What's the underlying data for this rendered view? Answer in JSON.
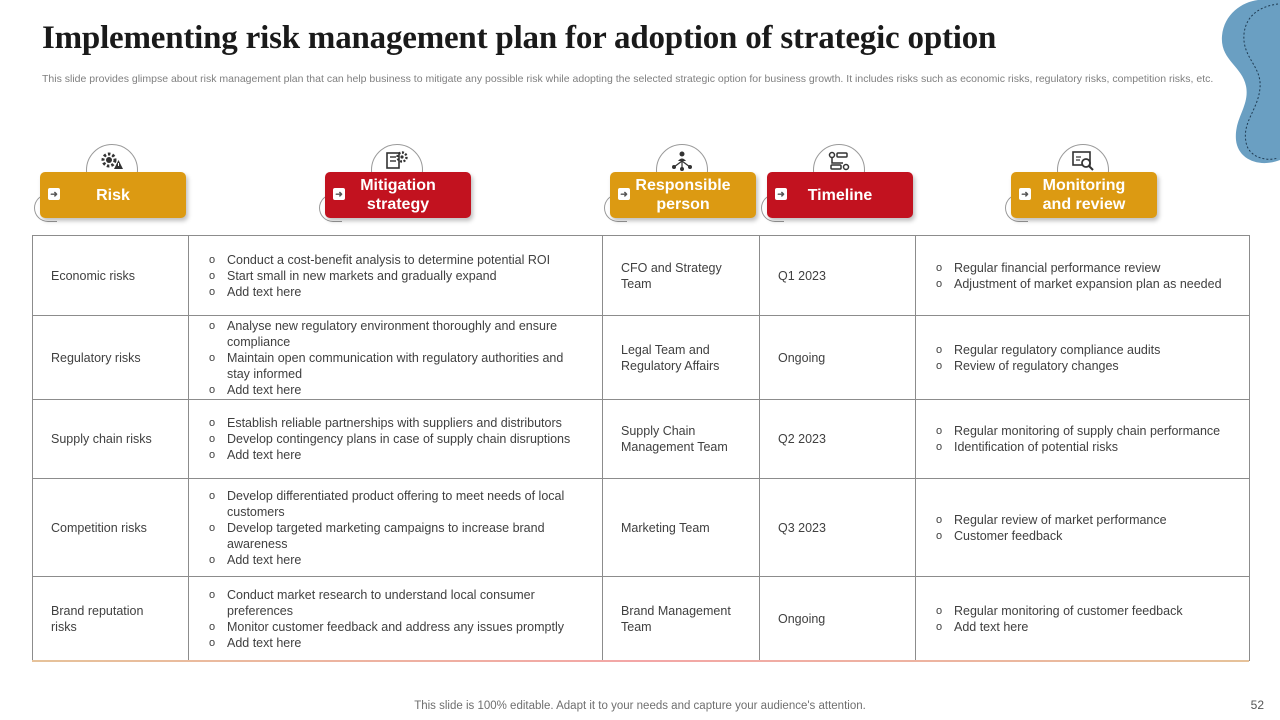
{
  "title": "Implementing risk management plan for adoption of strategic option",
  "subtitle": "This slide provides glimpse about risk management plan that can help business to mitigate any possible risk while adopting the selected strategic option for business growth. It includes risks such as economic risks, regulatory risks, competition risks, etc.",
  "colors": {
    "gold": "#dc9a12",
    "red": "#c2121f",
    "blob": "#6a9fc2"
  },
  "headers": [
    {
      "label": "Risk",
      "color": "gold",
      "icon": "warning-gear-icon"
    },
    {
      "label": "Mitigation strategy",
      "color": "red",
      "icon": "strategy-gear-icon"
    },
    {
      "label": "Responsible person",
      "color": "gold",
      "icon": "team-network-icon"
    },
    {
      "label": "Timeline",
      "color": "red",
      "icon": "timeline-flow-icon"
    },
    {
      "label": "Monitoring and review",
      "color": "gold",
      "icon": "monitor-search-icon"
    }
  ],
  "rows": [
    {
      "risk": "Economic risks",
      "mitigation": [
        "Conduct a cost-benefit analysis to determine potential ROI",
        "Start small in new markets and gradually expand",
        "Add text here"
      ],
      "person": "CFO and Strategy Team",
      "timeline": "Q1 2023",
      "monitoring": [
        "Regular financial performance  review",
        "Adjustment of market expansion plan as needed"
      ]
    },
    {
      "risk": "Regulatory risks",
      "mitigation": [
        "Analyse new regulatory environment  thoroughly and ensure compliance",
        "Maintain open communication with regulatory authorities and stay informed",
        "Add text here"
      ],
      "person": "Legal Team and Regulatory Affairs",
      "timeline": "Ongoing",
      "monitoring": [
        "Regular regulatory compliance audits",
        "Review  of regulatory changes"
      ]
    },
    {
      "risk": "Supply chain risks",
      "mitigation": [
        "Establish reliable partnerships with suppliers and distributors",
        "Develop contingency plans in case of supply chain disruptions",
        "Add text here"
      ],
      "person": "Supply Chain Management Team",
      "timeline": "Q2 2023",
      "monitoring": [
        "Regular monitoring of supply chain performance",
        "Identification of potential risks"
      ]
    },
    {
      "risk": "Competition risks",
      "mitigation": [
        "Develop differentiated  product offering to meet needs of local customers",
        "Develop targeted marketing campaigns to increase brand awareness",
        "Add text here"
      ],
      "person": "Marketing Team",
      "timeline": "Q3 2023",
      "monitoring": [
        "Regular review  of market performance",
        "Customer feedback"
      ]
    },
    {
      "risk": "Brand reputation risks",
      "mitigation": [
        "Conduct market research to understand local consumer preferences",
        "Monitor customer feedback  and address any issues promptly",
        "Add text here"
      ],
      "person": "Brand Management Team",
      "timeline": "Ongoing",
      "monitoring": [
        "Regular monitoring  of customer feedback",
        " Add text here"
      ]
    }
  ],
  "footer": "This slide is 100% editable. Adapt it to your needs and capture your audience's attention.",
  "page_number": "52"
}
